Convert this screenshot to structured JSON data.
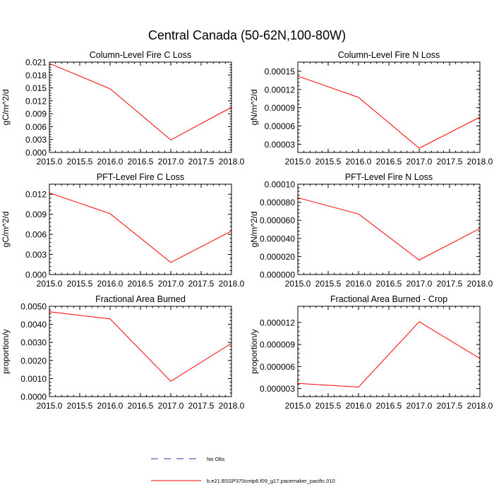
{
  "title": "Central Canada (50-62N,100-80W)",
  "colors": {
    "series": "#ff0000",
    "obs": "#3a3aa8",
    "axis": "#000000"
  },
  "chart_data": [
    {
      "type": "line",
      "title": "Column-Level Fire C Loss",
      "ylabel": "gC/m^2/d",
      "xlim": [
        2015.0,
        2018.0
      ],
      "ylim": [
        0.0,
        0.021
      ],
      "xticks": [
        "2015.0",
        "2015.5",
        "2016.0",
        "2016.5",
        "2017.0",
        "2017.5",
        "2018.0"
      ],
      "yticks": [
        "0.000",
        "0.003",
        "0.006",
        "0.009",
        "0.012",
        "0.015",
        "0.018",
        "0.021"
      ],
      "x": [
        2015,
        2016,
        2017,
        2018
      ],
      "y": [
        0.0207,
        0.0148,
        0.0029,
        0.0105
      ]
    },
    {
      "type": "line",
      "title": "Column-Level Fire N Loss",
      "ylabel": "gN/m^2/d",
      "xlim": [
        2015.0,
        2018.0
      ],
      "ylim": [
        1.65e-05,
        0.000165
      ],
      "xticks": [
        "2015.0",
        "2015.5",
        "2016.0",
        "2016.5",
        "2017.0",
        "2017.5",
        "2018.0"
      ],
      "yticks": [
        "0.00003",
        "0.00006",
        "0.00009",
        "0.00012",
        "0.00015"
      ],
      "x": [
        2015,
        2016,
        2017,
        2018
      ],
      "y": [
        0.000142,
        0.000107,
        2.35e-05,
        7.45e-05
      ]
    },
    {
      "type": "line",
      "title": "PFT-Level Fire C Loss",
      "ylabel": "gC/m^2/d",
      "xlim": [
        2015.0,
        2018.0
      ],
      "ylim": [
        0.0,
        0.0135
      ],
      "xticks": [
        "2015.0",
        "2015.5",
        "2016.0",
        "2016.5",
        "2017.0",
        "2017.5",
        "2018.0"
      ],
      "yticks": [
        "0.000",
        "0.003",
        "0.006",
        "0.009",
        "0.012"
      ],
      "x": [
        2015,
        2016,
        2017,
        2018
      ],
      "y": [
        0.0122,
        0.0091,
        0.0018,
        0.0065
      ]
    },
    {
      "type": "line",
      "title": "PFT-Level Fire N Loss",
      "ylabel": "gN/m^2/d",
      "xlim": [
        2015.0,
        2018.0
      ],
      "ylim": [
        0.0,
        0.0001
      ],
      "xticks": [
        "2015.0",
        "2015.5",
        "2016.0",
        "2016.5",
        "2017.0",
        "2017.5",
        "2018.0"
      ],
      "yticks": [
        "0.000000",
        "0.000020",
        "0.000040",
        "0.000060",
        "0.000080",
        "0.00010"
      ],
      "x": [
        2015,
        2016,
        2017,
        2018
      ],
      "y": [
        8.5e-05,
        6.7e-05,
        1.6e-05,
        5.1e-05
      ]
    },
    {
      "type": "line",
      "title": "Fractional Area Burned",
      "ylabel": "proportion/y",
      "xlim": [
        2015.0,
        2018.0
      ],
      "ylim": [
        0.0,
        0.005
      ],
      "xticks": [
        "2015.0",
        "2015.5",
        "2016.0",
        "2016.5",
        "2017.0",
        "2017.5",
        "2018.0"
      ],
      "yticks": [
        "0.0000",
        "0.0010",
        "0.0020",
        "0.0030",
        "0.0040",
        "0.0050"
      ],
      "x": [
        2015,
        2016,
        2017,
        2018
      ],
      "y": [
        0.0047,
        0.0043,
        0.00085,
        0.00295
      ]
    },
    {
      "type": "line",
      "title": "Fractional Area Burned - Crop",
      "ylabel": "proportion/y",
      "xlim": [
        2015.0,
        2018.0
      ],
      "ylim": [
        1.9e-06,
        1.42e-05
      ],
      "xticks": [
        "2015.0",
        "2015.5",
        "2016.0",
        "2016.5",
        "2017.0",
        "2017.5",
        "2018.0"
      ],
      "yticks": [
        "0.000003",
        "0.000006",
        "0.000009",
        "0.000012"
      ],
      "x": [
        2015,
        2016,
        2017,
        2018
      ],
      "y": [
        3.7e-06,
        3.2e-06,
        1.21e-05,
        7.1e-06
      ]
    }
  ],
  "legend": {
    "entries": [
      {
        "label": "No Obs",
        "style": "dashed"
      },
      {
        "label": "b.e21.BSSP370cmip6.f09_g17.pacemaker_pacific.010",
        "style": "solid"
      }
    ]
  }
}
